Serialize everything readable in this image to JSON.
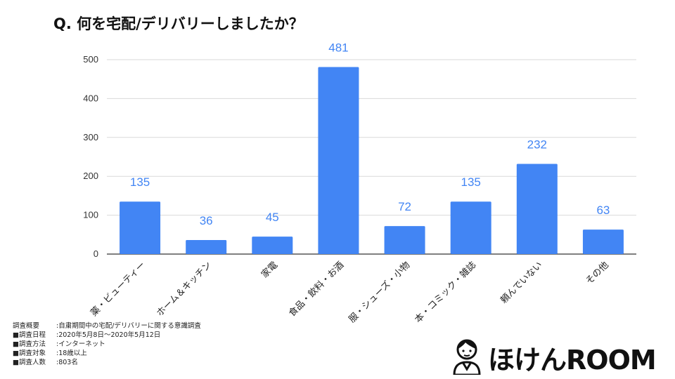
{
  "title": "Q.  何を宅配/デリバリーしましたか？",
  "chart_data": {
    "type": "bar",
    "categories": [
      "薬・ビューティー",
      "ホーム＆キッチン",
      "家電",
      "食品・飲料・お酒",
      "服・シューズ・小物",
      "本・コミック・雑誌",
      "頼んでいない",
      "その他"
    ],
    "values": [
      135,
      36,
      45,
      481,
      72,
      135,
      232,
      63
    ],
    "ylim": [
      0,
      500
    ],
    "yticks": [
      0,
      100,
      200,
      300,
      400,
      500
    ],
    "grid": true,
    "bar_color": "#4285f4",
    "label_color": "#4285f4"
  },
  "notes": [
    {
      "label": "調査概要",
      "value": "自粛期間中の宅配/デリバリーに関する意識調査"
    },
    {
      "label": "■調査日程",
      "value": "2020年5月8日〜2020年5月12日"
    },
    {
      "label": "■調査方法",
      "value": "インターネット"
    },
    {
      "label": "■調査対象",
      "value": "18歳以上"
    },
    {
      "label": "■調査人数",
      "value": "803名"
    }
  ],
  "logo": {
    "text": "ほけんROOM",
    "icon": "person-avatar-icon"
  }
}
